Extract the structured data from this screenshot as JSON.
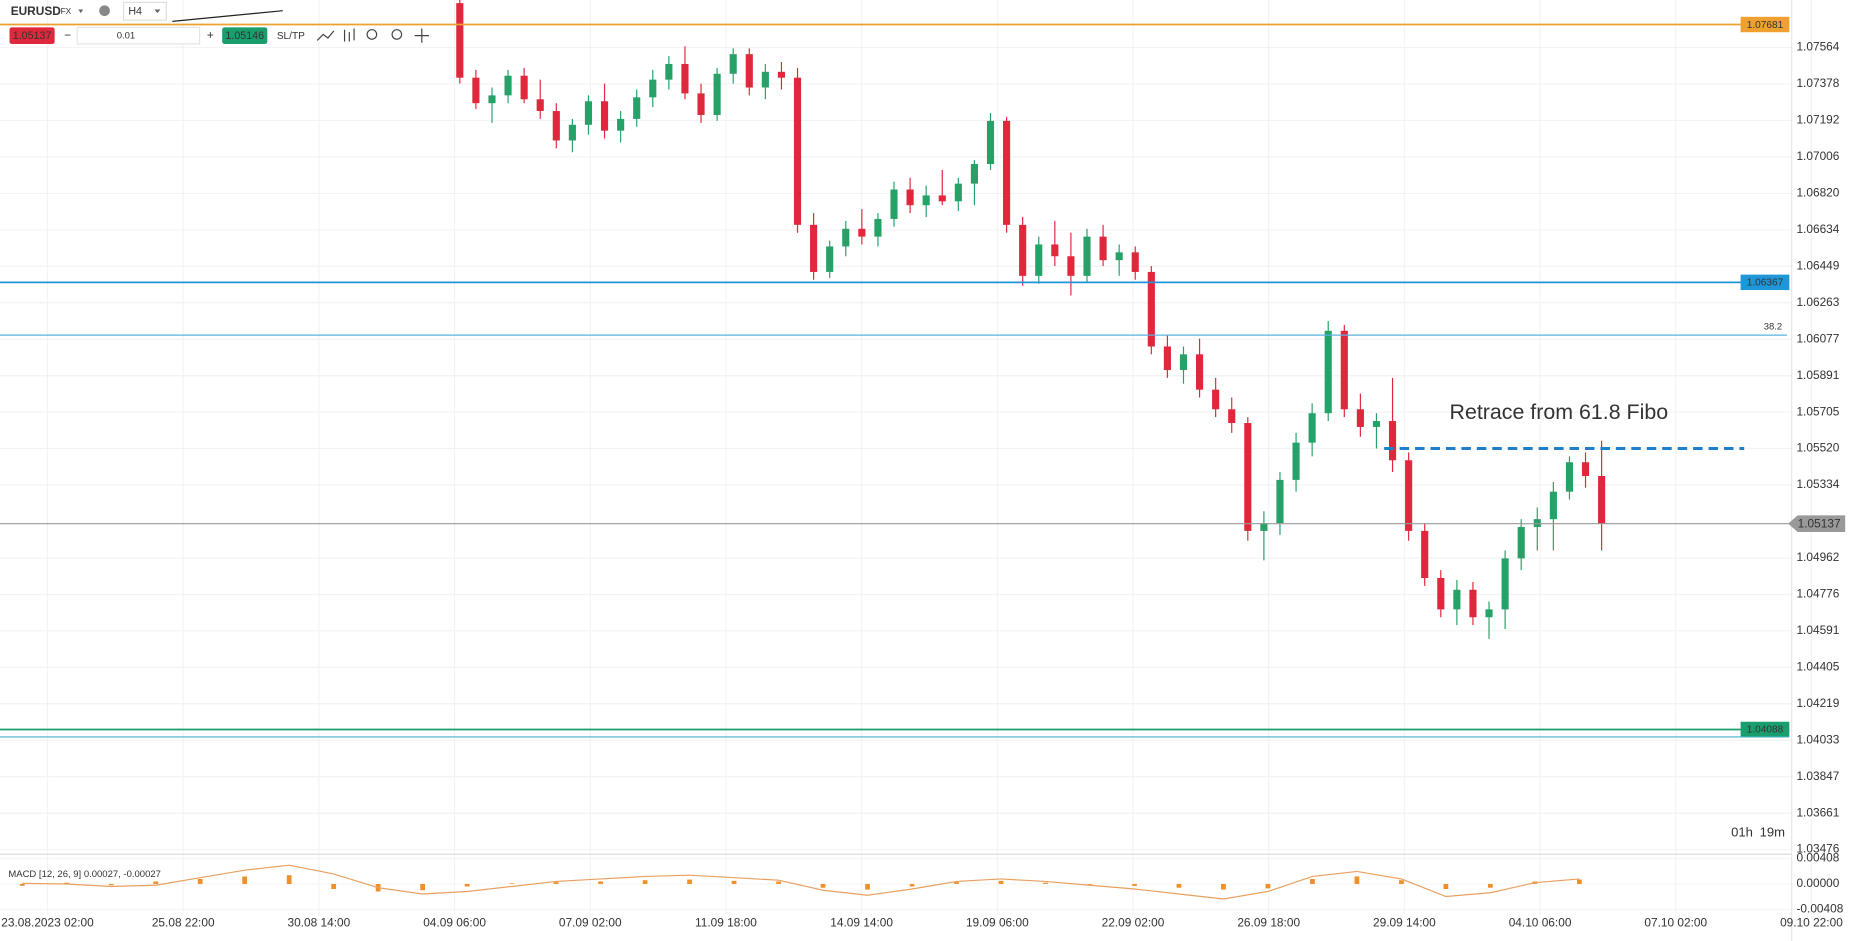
{
  "toolbar": {
    "symbol": "EURUSD",
    "market": "FX",
    "timeframe": "H4",
    "sell": "1.05137",
    "volume": "0.01",
    "buy": "1.05146",
    "sltp": "SL/TP"
  },
  "chart_data": {
    "type": "candlestick",
    "annotation": "Retrace from 61.8 Fibo",
    "ylim": [
      1.03458,
      1.07806
    ],
    "yticks": [
      1.07564,
      1.07378,
      1.07192,
      1.07006,
      {
        "value": 1.0682,
        "label": "1.06820"
      },
      1.06634,
      1.06449,
      1.06263,
      1.06077,
      1.05891,
      1.05705,
      {
        "value": 1.0552,
        "label": "1.05520"
      },
      1.05334,
      1.04962,
      1.04776,
      1.04591,
      1.04405,
      1.04219,
      1.04033,
      1.03847,
      1.03661,
      1.03476
    ],
    "categories": [
      "23.08.2023 02:00",
      "25.08 22:00",
      "30.08 14:00",
      "04.09 06:00",
      "07.09 02:00",
      "11.09 18:00",
      "14.09 14:00",
      "19.09 06:00",
      "22.09 02:00",
      "26.09 18:00",
      "29.09 14:00",
      "04.10 06:00",
      "07.10 02:00",
      "09.10 22:00"
    ],
    "up_color": "#26a269",
    "down_color": "#e0283c",
    "levels": [
      {
        "value": 1.07681,
        "color": "#f0a030",
        "tagged": true
      },
      {
        "value": 1.06367,
        "color": "#1f96d8",
        "tagged": true
      },
      {
        "value": 1.05137,
        "color": "#999999",
        "tagged": true
      },
      {
        "value": 1.04088,
        "color": "#1a9e6e",
        "tagged": true
      },
      {
        "value": 1.0405,
        "color": "#45b5c8",
        "tagged": false
      }
    ],
    "fib": {
      "value": 1.06098,
      "label": "38.2",
      "color": "#5ab0e0"
    },
    "dashed": {
      "value": 1.0552,
      "color": "#1f7fc8"
    },
    "timer": [
      "01h",
      "19m"
    ],
    "candles": [
      [
        1.0779,
        1.0781,
        1.0738,
        1.0741
      ],
      [
        1.0741,
        1.0745,
        1.0725,
        1.0728
      ],
      [
        1.0728,
        1.0736,
        1.0718,
        1.0732
      ],
      [
        1.0732,
        1.0745,
        1.0728,
        1.0742
      ],
      [
        1.0742,
        1.0746,
        1.0728,
        1.073
      ],
      [
        1.073,
        1.074,
        1.072,
        1.0724
      ],
      [
        1.0724,
        1.0728,
        1.0705,
        1.0709
      ],
      [
        1.0709,
        1.072,
        1.0703,
        1.0717
      ],
      [
        1.0717,
        1.0732,
        1.0712,
        1.0729
      ],
      [
        1.0729,
        1.0738,
        1.071,
        1.0714
      ],
      [
        1.0714,
        1.0724,
        1.0708,
        1.072
      ],
      [
        1.072,
        1.0735,
        1.0716,
        1.0731
      ],
      [
        1.0731,
        1.0745,
        1.0726,
        1.074
      ],
      [
        1.074,
        1.0752,
        1.0735,
        1.0748
      ],
      [
        1.0748,
        1.0757,
        1.073,
        1.0733
      ],
      [
        1.0733,
        1.0738,
        1.0718,
        1.0722
      ],
      [
        1.0722,
        1.0746,
        1.0719,
        1.0743
      ],
      [
        1.0743,
        1.0756,
        1.0738,
        1.0753
      ],
      [
        1.0753,
        1.0756,
        1.0732,
        1.0736
      ],
      [
        1.0736,
        1.0748,
        1.073,
        1.0744
      ],
      [
        1.0744,
        1.0749,
        1.0735,
        1.0741
      ],
      [
        1.0741,
        1.0746,
        1.0662,
        1.0666
      ],
      [
        1.0666,
        1.0672,
        1.0638,
        1.0642
      ],
      [
        1.0642,
        1.0658,
        1.0639,
        1.0655
      ],
      [
        1.0655,
        1.0668,
        1.065,
        1.0664
      ],
      [
        1.0664,
        1.0674,
        1.0656,
        1.066
      ],
      [
        1.066,
        1.0672,
        1.0655,
        1.0669
      ],
      [
        1.0669,
        1.0688,
        1.0665,
        1.0684
      ],
      [
        1.0684,
        1.069,
        1.0672,
        1.0676
      ],
      [
        1.0676,
        1.0686,
        1.067,
        1.0681
      ],
      [
        1.0681,
        1.0694,
        1.0676,
        1.0678
      ],
      [
        1.0678,
        1.069,
        1.0673,
        1.0687
      ],
      [
        1.0687,
        1.0699,
        1.0676,
        1.0697
      ],
      [
        1.0697,
        1.0723,
        1.0694,
        1.0719
      ],
      [
        1.0719,
        1.0721,
        1.0662,
        1.0666
      ],
      [
        1.0666,
        1.067,
        1.0635,
        1.064
      ],
      [
        1.064,
        1.066,
        1.0636,
        1.0656
      ],
      [
        1.0656,
        1.0668,
        1.0645,
        1.065
      ],
      [
        1.065,
        1.0662,
        1.063,
        1.064
      ],
      [
        1.064,
        1.0664,
        1.0637,
        1.066
      ],
      [
        1.066,
        1.0666,
        1.0645,
        1.0648
      ],
      [
        1.0648,
        1.0656,
        1.064,
        1.0652
      ],
      [
        1.0652,
        1.0655,
        1.0638,
        1.0642
      ],
      [
        1.0642,
        1.0645,
        1.06,
        1.0604
      ],
      [
        1.0604,
        1.061,
        1.0588,
        1.0592
      ],
      [
        1.0592,
        1.0604,
        1.0585,
        1.06
      ],
      [
        1.06,
        1.0608,
        1.0578,
        1.0582
      ],
      [
        1.0582,
        1.0588,
        1.0568,
        1.0572
      ],
      [
        1.0572,
        1.0578,
        1.056,
        1.0565
      ],
      [
        1.0565,
        1.0568,
        1.0505,
        1.051
      ],
      [
        1.051,
        1.052,
        1.0495,
        1.0514
      ],
      [
        1.0514,
        1.054,
        1.0508,
        1.0536
      ],
      [
        1.0536,
        1.056,
        1.053,
        1.0555
      ],
      [
        1.0555,
        1.0575,
        1.0548,
        1.057
      ],
      [
        1.057,
        1.0617,
        1.0566,
        1.0612
      ],
      [
        1.0612,
        1.0615,
        1.0568,
        1.0572
      ],
      [
        1.0572,
        1.058,
        1.0558,
        1.0563
      ],
      [
        1.0563,
        1.057,
        1.0552,
        1.0566
      ],
      [
        1.0566,
        1.0588,
        1.054,
        1.0546
      ],
      [
        1.0546,
        1.055,
        1.0505,
        1.051
      ],
      [
        1.051,
        1.0514,
        1.0482,
        1.0486
      ],
      [
        1.0486,
        1.049,
        1.0466,
        1.047
      ],
      [
        1.047,
        1.0485,
        1.0462,
        1.048
      ],
      [
        1.048,
        1.0484,
        1.0462,
        1.0466
      ],
      [
        1.0466,
        1.0474,
        1.0455,
        1.047
      ],
      [
        1.047,
        1.05,
        1.046,
        1.0496
      ],
      [
        1.0496,
        1.0516,
        1.049,
        1.0512
      ],
      [
        1.0512,
        1.0522,
        1.05,
        1.0516
      ],
      [
        1.0516,
        1.0535,
        1.05,
        1.053
      ],
      [
        1.053,
        1.0548,
        1.0526,
        1.0545
      ],
      [
        1.0545,
        1.055,
        1.0532,
        1.0538
      ],
      [
        1.0538,
        1.0556,
        1.05,
        1.05137
      ]
    ],
    "macd": {
      "label": "MACD [12, 26, 9] 0.00027, -0.00027",
      "ylim": [
        -0.00408,
        0.00408
      ],
      "yticks": [
        0.00408,
        {
          "value": 0,
          "label": "0.00000"
        },
        -0.00408
      ],
      "hist_color": "#f0902a",
      "line_color": "#e8a060",
      "histogram": [
        -0.0003,
        0.0002,
        -0.0002,
        0.0004,
        0.0008,
        0.0012,
        0.0014,
        -0.0008,
        -0.0012,
        -0.001,
        -0.0004,
        0.0001,
        0.0003,
        0.0004,
        0.0006,
        0.0007,
        0.0005,
        0.0004,
        -0.0006,
        -0.0009,
        -0.0004,
        0.0003,
        0.0005,
        0.0002,
        -0.0001,
        -0.0003,
        -0.0006,
        -0.0009,
        -0.0007,
        0.0008,
        0.0012,
        0.0006,
        -0.0008,
        -0.0006,
        0.0004,
        0.0007
      ],
      "line": [
        0.0001,
        0,
        -0.0004,
        -0.0002,
        0.001,
        0.0022,
        0.003,
        0.0016,
        -0.0006,
        -0.0016,
        -0.0012,
        -0.0004,
        0.0004,
        0.0008,
        0.0012,
        0.0014,
        0.001,
        0.0006,
        -0.001,
        -0.0018,
        -0.0008,
        0.0004,
        0.0008,
        0.0004,
        -0.0002,
        -0.0008,
        -0.0016,
        -0.0024,
        -0.0012,
        0.0012,
        0.002,
        0.0008,
        -0.002,
        -0.0014,
        0.0002,
        0.0008
      ]
    }
  }
}
